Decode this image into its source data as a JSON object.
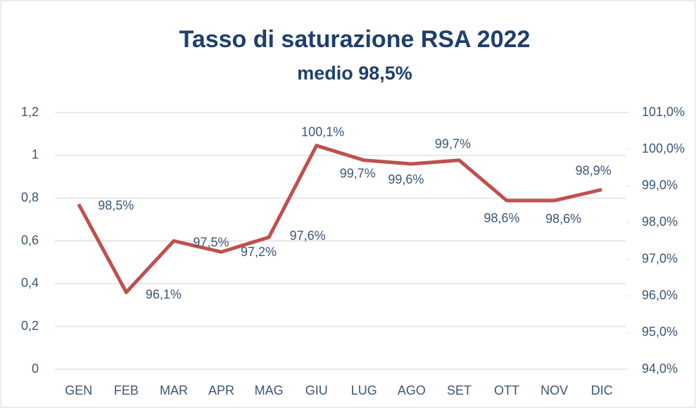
{
  "chart_data": {
    "type": "line",
    "title": "Tasso di saturazione RSA 2022",
    "subtitle": "medio 98,5%",
    "categories": [
      "GEN",
      "FEB",
      "MAR",
      "APR",
      "MAG",
      "GIU",
      "LUG",
      "AGO",
      "SET",
      "OTT",
      "NOV",
      "DIC"
    ],
    "series": [
      {
        "name": "Tasso di saturazione",
        "color": "#c0504d",
        "axis": "y2",
        "values": [
          98.5,
          96.1,
          97.5,
          97.2,
          97.6,
          100.1,
          99.7,
          99.6,
          99.7,
          98.6,
          98.6,
          98.9
        ],
        "value_labels": [
          "98,5%",
          "96,1%",
          "97,5%",
          "97,2%",
          "97,6%",
          "100,1%",
          "99,7%",
          "99,6%",
          "99,7%",
          "98,6%",
          "98,6%",
          "98,9%"
        ]
      }
    ],
    "ylim": [
      0,
      1.2
    ],
    "yticks": [
      0,
      {
        "value": 0.2,
        "label": "0,2"
      },
      {
        "value": 0.4,
        "label": "0,4"
      },
      {
        "value": 0.6,
        "label": "0,6"
      },
      {
        "value": 0.8,
        "label": "0,8"
      },
      1,
      {
        "value": 1.2,
        "label": "1,2"
      }
    ],
    "y2lim": [
      94,
      101
    ],
    "y2ticks": [
      {
        "value": 94,
        "label": "94,0%"
      },
      {
        "value": 95,
        "label": "95,0%"
      },
      {
        "value": 96,
        "label": "96,0%"
      },
      {
        "value": 97,
        "label": "97,0%"
      },
      {
        "value": 98,
        "label": "98,0%"
      },
      {
        "value": 99,
        "label": "99,0%"
      },
      {
        "value": 100,
        "label": "100,0%"
      },
      {
        "value": 101,
        "label": "101,0%"
      }
    ],
    "grid": true
  }
}
